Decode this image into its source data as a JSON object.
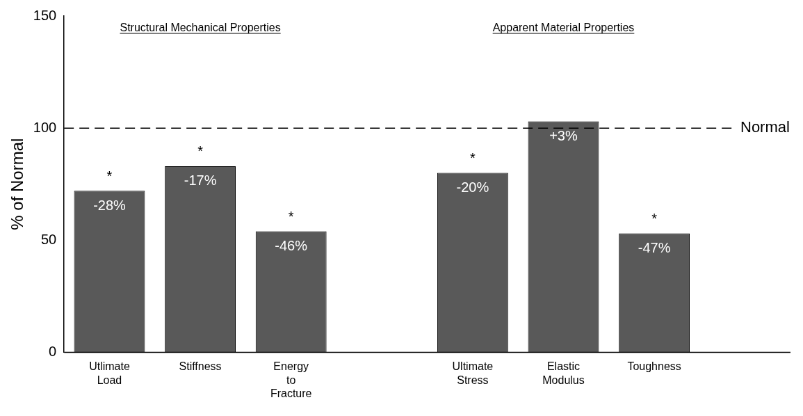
{
  "chart_data": {
    "type": "bar",
    "ylabel": "% of Normal",
    "categories": [
      "Utlimate Load",
      "Stiffness",
      "Energy to Fracture",
      null,
      "Ultimate Stress",
      "Elastic Modulus",
      "Toughness",
      null
    ],
    "values": [
      72,
      83,
      54,
      null,
      80,
      103,
      53,
      null
    ],
    "color": "#595959",
    "ylim": [
      0,
      150
    ],
    "yticks": [
      0,
      50,
      100,
      150
    ],
    "grid": false,
    "legend": false,
    "ref_lines": [
      {
        "axis": "y",
        "value": 100,
        "label": "Normal",
        "line_style": "dashed",
        "color": "#000000"
      }
    ],
    "annotations": [
      "Structural Mechanical Properties",
      "Apparent Material Properties",
      {
        "text": "-28%",
        "x": "Utlimate Load",
        "y": 72
      },
      {
        "text": "-17%",
        "x": "Stiffness",
        "y": 83
      },
      {
        "text": "-46%",
        "x": "Energy to Fracture",
        "y": 54
      },
      {
        "text": "-20%",
        "x": "Ultimate Stress",
        "y": 80
      },
      {
        "text": "+3%",
        "x": "Elastic Modulus",
        "y": 103
      },
      {
        "text": "-47%",
        "x": "Toughness",
        "y": 53
      },
      {
        "text": "*",
        "x": "Utlimate Load",
        "y": 72
      },
      {
        "text": "*",
        "x": "Stiffness",
        "y": 83
      },
      {
        "text": "*",
        "x": "Energy to Fracture",
        "y": 54
      },
      {
        "text": "*",
        "x": "Ultimate Stress",
        "y": 80
      },
      {
        "text": "*",
        "x": "Toughness",
        "y": 53
      }
    ]
  }
}
